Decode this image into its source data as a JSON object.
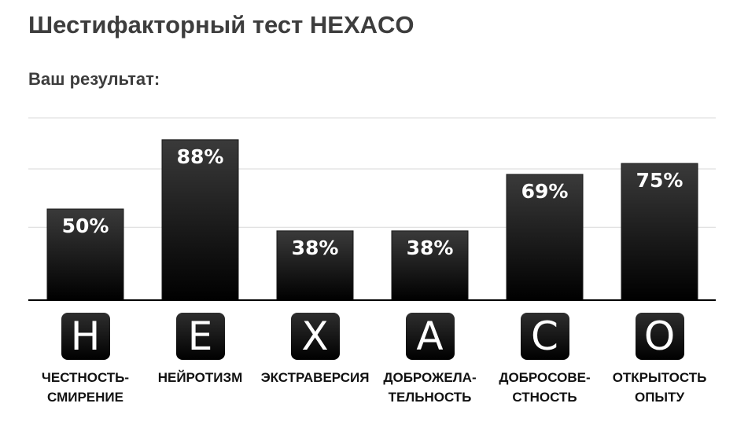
{
  "page": {
    "title": "Шестифакторный тест HEXACO",
    "subtitle": "Ваш результат:"
  },
  "colors": {
    "bar_top": "#3a3a3a",
    "bar_bottom": "#000000",
    "bar_label": "#ffffff",
    "grid": "#d9d9d9",
    "axis": "#000000"
  },
  "chart_data": {
    "type": "bar",
    "categories": [
      "H",
      "E",
      "X",
      "A",
      "C",
      "O"
    ],
    "category_names": [
      "ЧЕСТНОСТЬ-\nСМИРЕНИЕ",
      "НЕЙРОТИЗМ",
      "ЭКСТРАВЕРСИЯ",
      "ДОБРОЖЕЛА-\nТЕЛЬНОСТЬ",
      "ДОБРОСОВЕ-\nСТНОСТЬ",
      "ОТКРЫТОСТЬ\nОПЫТУ"
    ],
    "values": [
      50,
      88,
      38,
      38,
      69,
      75
    ],
    "value_labels": [
      "50%",
      "88%",
      "38%",
      "38%",
      "69%",
      "75%"
    ],
    "ylim": [
      0,
      100
    ],
    "grid": true,
    "legend": "none"
  }
}
